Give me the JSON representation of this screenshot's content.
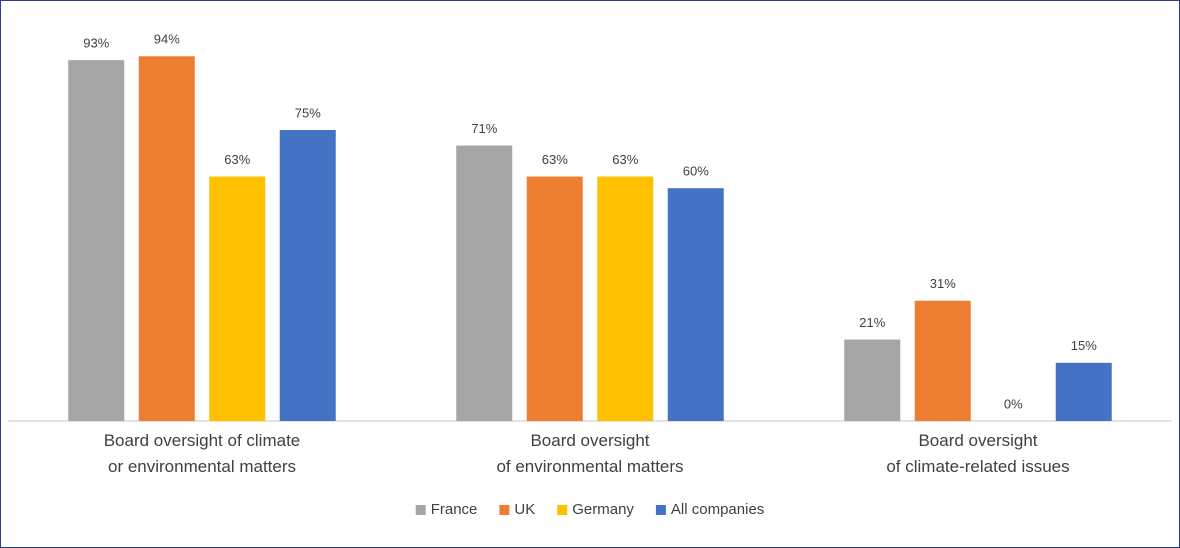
{
  "chart_data": {
    "type": "bar",
    "categories": [
      "Board oversight of climate\nor environmental matters",
      "Board oversight\nof environmental matters",
      "Board oversight\nof climate-related issues"
    ],
    "series": [
      {
        "name": "France",
        "color": "#a5a5a5",
        "values": [
          93,
          71,
          21
        ],
        "value_labels": [
          "93%",
          "71%",
          "21%"
        ]
      },
      {
        "name": "UK",
        "color": "#ed7d31",
        "values": [
          94,
          63,
          31
        ],
        "value_labels": [
          "94%",
          "63%",
          "31%"
        ]
      },
      {
        "name": "Germany",
        "color": "#ffc000",
        "values": [
          63,
          63,
          0
        ],
        "value_labels": [
          "63%",
          "63%",
          "0%"
        ]
      },
      {
        "name": "All companies",
        "color": "#4472c4",
        "values": [
          75,
          60,
          15
        ],
        "value_labels": [
          "75%",
          "60%",
          "15%"
        ]
      }
    ],
    "legend": "bottom"
  }
}
